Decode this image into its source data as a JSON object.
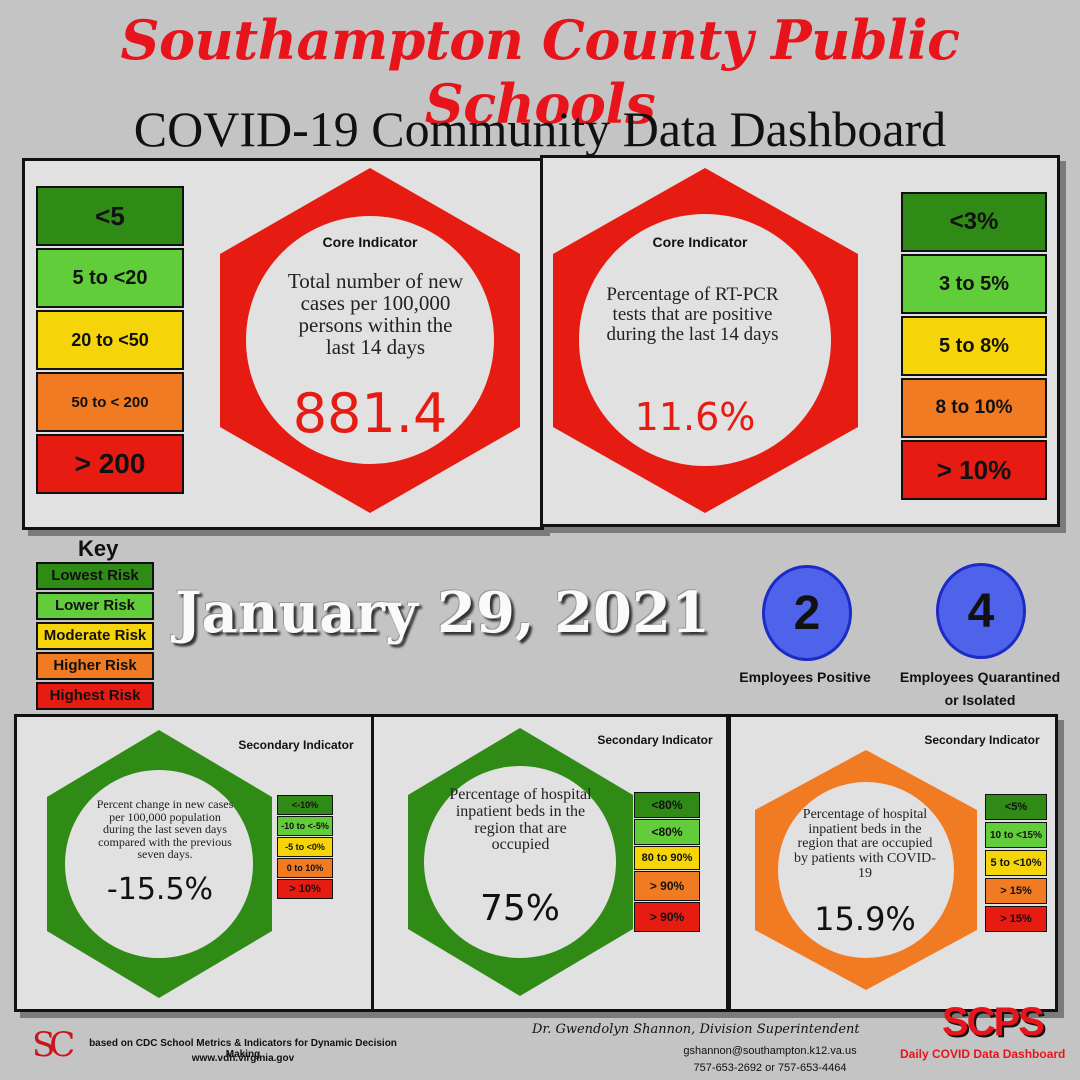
{
  "header": {
    "title": "Southampton County Public Schools",
    "subtitle": "COVID-19 Community Data Dashboard"
  },
  "core_left": {
    "label": "Core Indicator",
    "description": "Total number of new cases per 100,000 persons within the last 14 days",
    "value": "881.4",
    "scale": [
      "<5",
      "5 to  <20",
      "20 to <50",
      "50 to < 200",
      "> 200"
    ]
  },
  "core_right": {
    "label": "Core Indicator",
    "description": "Percentage of RT-PCR tests that are positive during the last 14 days",
    "value": "11.6%",
    "scale": [
      "<3%",
      "3 to 5%",
      "5 to 8%",
      "8 to 10%",
      "> 10%"
    ]
  },
  "key": {
    "title": "Key",
    "items": [
      "Lowest Risk",
      "Lower Risk",
      "Moderate Risk",
      "Higher Risk",
      "Highest Risk"
    ]
  },
  "date": "January 29, 2021",
  "employees": {
    "positive_count": "2",
    "positive_label": "Employees Positive",
    "quarantined_count": "4",
    "quarantined_label_1": "Employees Quarantined",
    "quarantined_label_2": "or Isolated"
  },
  "secondary_1": {
    "label": "Secondary Indicator",
    "description": "Percent change in new cases per 100,000 population during the last seven days compared with the previous seven days.",
    "value": "-15.5%",
    "scale": [
      "<-10%",
      "-10 to <-5%",
      "-5 to <0%",
      "0 to 10%",
      "> 10%"
    ]
  },
  "secondary_2": {
    "label": "Secondary Indicator",
    "description": "Percentage of hospital inpatient beds in the region that are occupied",
    "value": "75%",
    "scale": [
      "<80%",
      "<80%",
      "80 to 90%",
      "> 90%",
      "> 90%"
    ]
  },
  "secondary_3": {
    "label": "Secondary Indicator",
    "description": "Percentage of hospital inpatient beds in the region that are occupied by patients with COVID-19",
    "value": "15.9%",
    "scale": [
      "<5%",
      "10 to <15%",
      "5 to <10%",
      "> 15%",
      "> 15%"
    ]
  },
  "footer": {
    "logo_letters": "SC",
    "source_line": "based on CDC School Metrics & Indicators for Dynamic Decision Making",
    "source_url": "www.vdh.virginia.gov",
    "superintendent": "Dr. Gwendolyn Shannon, Division Superintendent",
    "email": "gshannon@southampton.k12.va.us",
    "phone": "757-653-2692 or 757-653-4464",
    "brand": "SCPS",
    "brand_caption": "Daily COVID Data Dashboard"
  },
  "colors": {
    "red": "#e61b12",
    "green": "#2f8a16",
    "orange": "#f17b22",
    "blue": "#4f63ea"
  }
}
